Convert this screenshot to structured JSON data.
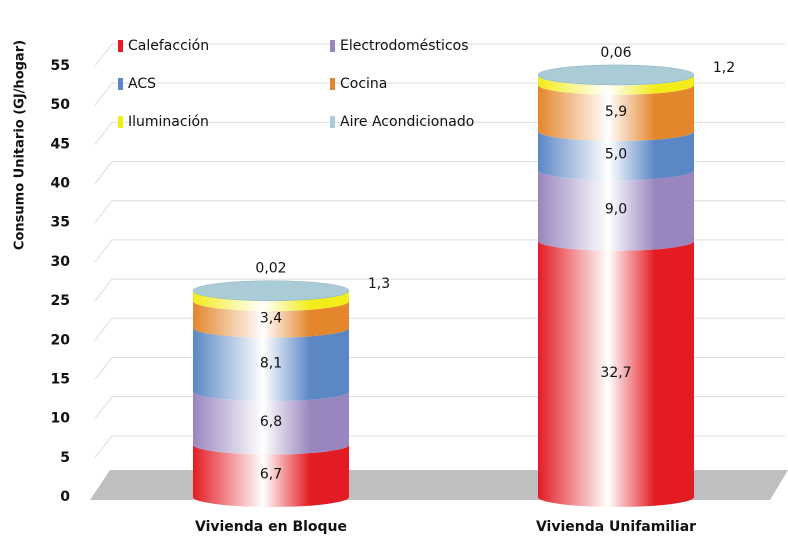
{
  "chart_data": {
    "type": "stacked-cylinder",
    "y_label": "Consumo Unitario  (GJ/hogar)",
    "categories": [
      "Vivienda en Bloque",
      "Vivienda Unifamiliar"
    ],
    "series": [
      {
        "name": "Calefacción",
        "color": "#e31b23",
        "values": [
          6.7,
          32.7
        ],
        "value_labels": [
          "6,7",
          "32,7"
        ]
      },
      {
        "name": "Electrodomésticos",
        "color": "#9a86bf",
        "values": [
          6.8,
          9.0
        ],
        "value_labels": [
          "6,8",
          "9,0"
        ]
      },
      {
        "name": "ACS",
        "color": "#5b87c5",
        "values": [
          8.1,
          5.0
        ],
        "value_labels": [
          "8,1",
          "5,0"
        ]
      },
      {
        "name": "Cocina",
        "color": "#e4862c",
        "values": [
          3.4,
          5.9
        ],
        "value_labels": [
          "3,4",
          "5,9"
        ]
      },
      {
        "name": "Iluminación",
        "color": "#f2ec1a",
        "values": [
          1.3,
          1.2
        ],
        "value_labels": [
          "1,3",
          "1,2"
        ]
      },
      {
        "name": "Aire Acondicionado",
        "color": "#a9ccd6",
        "values": [
          0.02,
          0.06
        ],
        "value_labels": [
          "0,02",
          "0,06"
        ]
      }
    ],
    "ylim": [
      0,
      55
    ],
    "yticks": [
      0,
      5,
      10,
      15,
      20,
      25,
      30,
      35,
      40,
      45,
      50,
      55
    ],
    "grid": true,
    "legend": "top-left"
  }
}
